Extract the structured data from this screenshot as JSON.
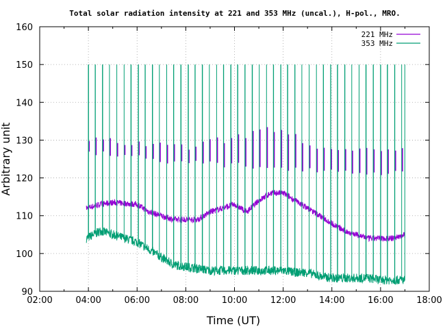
{
  "chart_data": {
    "type": "line",
    "title": "Total solar radiation intensity at 221 and 353 MHz (uncal.), H-pol., MRO.",
    "xlabel": "Time (UT)",
    "ylabel": "Arbitrary unit",
    "xlim": [
      "02:00",
      "18:00"
    ],
    "ylim": [
      90,
      160
    ],
    "x_ticks": [
      "02:00",
      "04:00",
      "06:00",
      "08:00",
      "10:00",
      "12:00",
      "14:00",
      "16:00",
      "18:00"
    ],
    "y_ticks": [
      "90",
      "100",
      "110",
      "120",
      "130",
      "140",
      "150",
      "160"
    ],
    "grid": true,
    "legend_position": "top-right",
    "series": [
      {
        "name": "221 MHz",
        "color": "#9400d3",
        "baseline": [
          [
            "03:55",
            112
          ],
          [
            "04:30",
            113
          ],
          [
            "05:00",
            113.5
          ],
          [
            "06:00",
            113
          ],
          [
            "06:30",
            111
          ],
          [
            "07:00",
            110
          ],
          [
            "07:30",
            109
          ],
          [
            "08:00",
            109
          ],
          [
            "08:30",
            109
          ],
          [
            "09:00",
            111
          ],
          [
            "09:30",
            112
          ],
          [
            "10:00",
            113
          ],
          [
            "10:30",
            111
          ],
          [
            "11:00",
            114
          ],
          [
            "11:30",
            116
          ],
          [
            "12:00",
            116
          ],
          [
            "12:30",
            114
          ],
          [
            "13:00",
            112
          ],
          [
            "13:30",
            110
          ],
          [
            "14:00",
            108
          ],
          [
            "14:30",
            106
          ],
          [
            "15:00",
            105
          ],
          [
            "15:30",
            104
          ],
          [
            "16:00",
            104
          ],
          [
            "16:30",
            104
          ],
          [
            "17:00",
            105
          ]
        ],
        "calibration_high": [
          [
            "04:00",
            130
          ],
          [
            "08:00",
            128
          ],
          [
            "11:40",
            133
          ],
          [
            "14:00",
            127
          ],
          [
            "17:00",
            127
          ]
        ],
        "calibration_low": [
          [
            "04:00",
            127
          ],
          [
            "08:00",
            124
          ],
          [
            "11:00",
            123
          ],
          [
            "14:00",
            122
          ],
          [
            "17:00",
            121
          ]
        ]
      },
      {
        "name": "353 MHz",
        "color": "#009e73",
        "baseline": [
          [
            "03:55",
            104
          ],
          [
            "04:30",
            106
          ],
          [
            "05:00",
            105
          ],
          [
            "06:00",
            103
          ],
          [
            "06:30",
            101
          ],
          [
            "07:00",
            99
          ],
          [
            "07:30",
            97
          ],
          [
            "08:00",
            96.5
          ],
          [
            "08:30",
            96
          ],
          [
            "09:00",
            95.5
          ],
          [
            "09:30",
            95.5
          ],
          [
            "10:00",
            95.5
          ],
          [
            "10:30",
            95.5
          ],
          [
            "11:00",
            95.5
          ],
          [
            "11:30",
            95.5
          ],
          [
            "12:00",
            95.5
          ],
          [
            "12:30",
            95
          ],
          [
            "13:00",
            95
          ],
          [
            "13:30",
            94
          ],
          [
            "14:00",
            93.5
          ],
          [
            "14:30",
            93.5
          ],
          [
            "15:00",
            93.5
          ],
          [
            "15:30",
            93.5
          ],
          [
            "16:00",
            93
          ],
          [
            "16:30",
            93
          ],
          [
            "17:00",
            93
          ]
        ],
        "spike_peak": 150,
        "spike_times": [
          "04:00",
          "04:17",
          "04:35",
          "04:52",
          "05:10",
          "05:28",
          "05:45",
          "06:03",
          "06:20",
          "06:38",
          "06:55",
          "07:13",
          "07:30",
          "07:48",
          "08:06",
          "08:23",
          "08:41",
          "08:58",
          "09:16",
          "09:33",
          "09:51",
          "10:08",
          "10:26",
          "10:44",
          "11:01",
          "11:19",
          "11:36",
          "11:54",
          "12:11",
          "12:29",
          "12:46",
          "13:04",
          "13:22",
          "13:39",
          "13:57",
          "14:14",
          "14:32",
          "14:49",
          "15:07",
          "15:24",
          "15:42",
          "16:00",
          "16:17",
          "16:35",
          "16:52",
          "17:00"
        ]
      }
    ]
  }
}
